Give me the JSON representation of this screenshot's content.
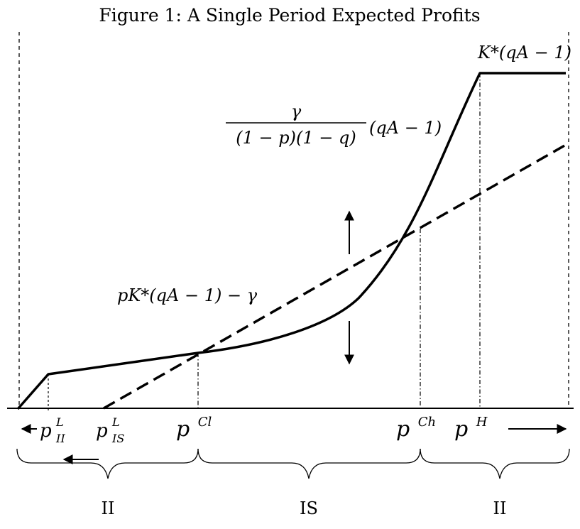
{
  "figure": {
    "title": "Figure 1: A Single Period Expected Profits"
  },
  "labels": {
    "cap": "K*(qA − 1)",
    "frac_num": "γ",
    "frac_den": "(1 − p)(1 − q)",
    "frac_tail": "(qA − 1)",
    "dashed_line": "pK*(qA − 1) − γ"
  },
  "ticks": {
    "p_II_L": {
      "base": "p",
      "sup": "L",
      "sub": "II"
    },
    "p_IS_L": {
      "base": "p",
      "sup": "L",
      "sub": "IS"
    },
    "p_Cl": {
      "base": "p",
      "sup": "Cl"
    },
    "p_Ch": {
      "base": "p",
      "sup": "Ch"
    },
    "p_H": {
      "base": "p",
      "sup": "H"
    }
  },
  "regions": [
    "II",
    "IS",
    "II"
  ]
}
